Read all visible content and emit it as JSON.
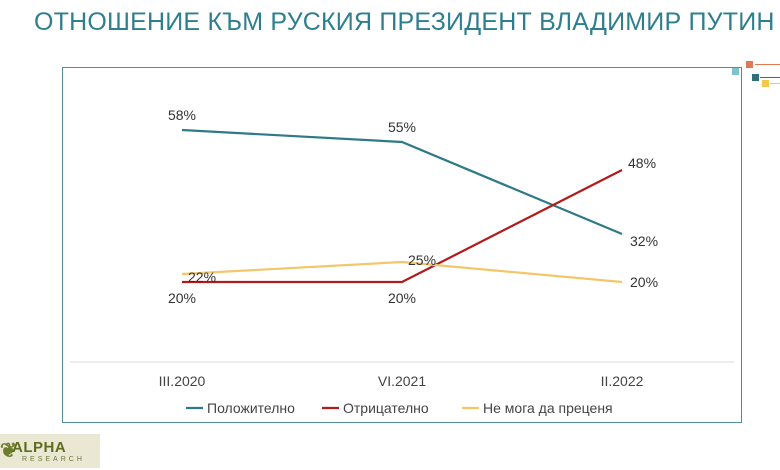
{
  "title": "ОТНОШЕНИЕ КЪМ РУСКИЯ ПРЕЗИДЕНТ ВЛАДИМИР ПУТИН",
  "logo": {
    "name": "ALPHA",
    "sub": "RESEARCH"
  },
  "chart_data": {
    "type": "line",
    "categories": [
      "III.2020",
      "VI.2021",
      "II.2022"
    ],
    "series": [
      {
        "name": "Положително",
        "values": [
          58,
          55,
          32
        ],
        "color": "#2e7a87",
        "labels": [
          "58%",
          "55%",
          "32%"
        ]
      },
      {
        "name": "Отрицателно",
        "values": [
          20,
          20,
          48
        ],
        "color": "#b01c1c",
        "labels": [
          "20%",
          "20%",
          "48%"
        ]
      },
      {
        "name": "Не мога да преценя",
        "values": [
          22,
          25,
          20
        ],
        "color": "#f3c66a",
        "labels": [
          "22%",
          "25%",
          "20%"
        ]
      }
    ],
    "ylim": [
      0,
      70
    ],
    "grid": false,
    "legend": "bottom"
  }
}
